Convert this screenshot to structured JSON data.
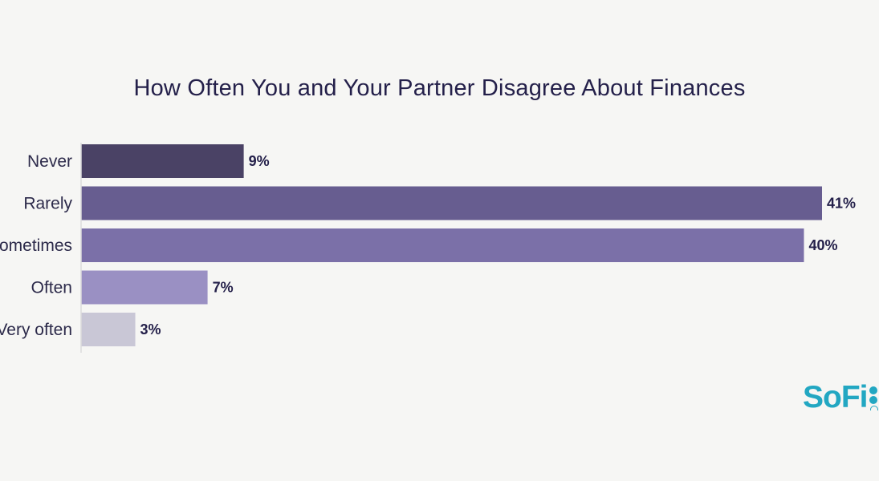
{
  "chart_data": {
    "type": "bar",
    "orientation": "horizontal",
    "title": "How Often You and Your Partner Disagree About Finances",
    "categories": [
      "Never",
      "Rarely",
      "Sometimes",
      "Often",
      "Very often"
    ],
    "values": [
      9,
      41,
      40,
      7,
      3
    ],
    "value_labels": [
      "9%",
      "41%",
      "40%",
      "7%",
      "3%"
    ],
    "colors": [
      "#4a4265",
      "#675d90",
      "#7b70a8",
      "#9a90c3",
      "#c9c7d6"
    ],
    "xlabel": "",
    "ylabel": "",
    "xlim": [
      0,
      41
    ],
    "grid": false,
    "legend": "none"
  },
  "brand": {
    "logo_text": "SoFi",
    "color": "#22a7c2"
  }
}
